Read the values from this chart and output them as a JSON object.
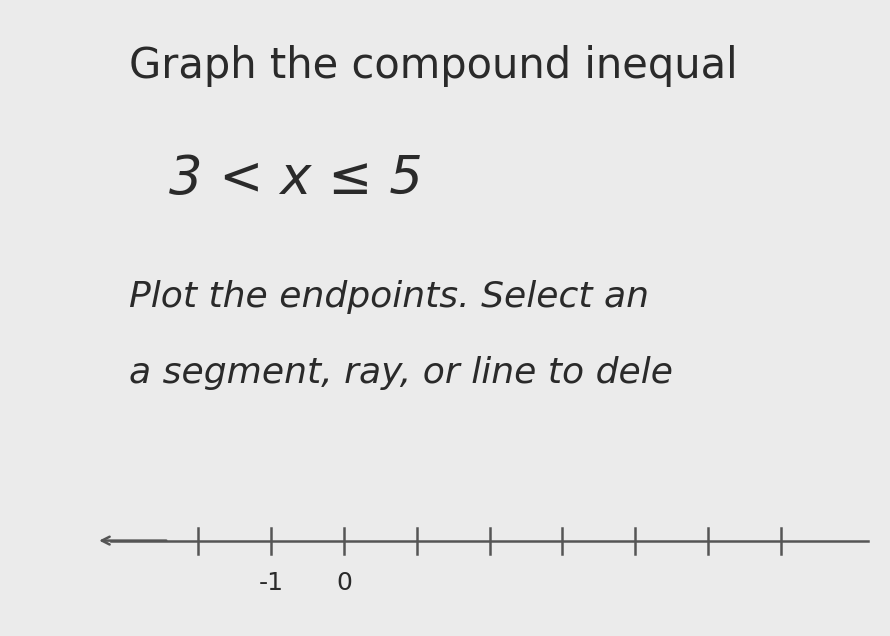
{
  "title_line1": "Graph the compound inequal",
  "inequality": "3 < x ≤ 5",
  "instruction_line1": "Plot the endpoints. Select an",
  "instruction_line2": "a segment, ray, or line to dele",
  "bg_color_left": "#6bbdd6",
  "bg_color_right": "#ebebeb",
  "tick_positions": [
    -2,
    -1,
    0,
    1,
    2,
    3,
    4,
    5,
    6
  ],
  "tick_label_neg1": "-1",
  "tick_label_0": "0",
  "xlim_left": -3.5,
  "xlim_right": 7.5,
  "title_fontsize": 30,
  "inequality_fontsize": 38,
  "instruction_fontsize": 26,
  "text_color": "#2a2a2a",
  "line_color": "#555555"
}
